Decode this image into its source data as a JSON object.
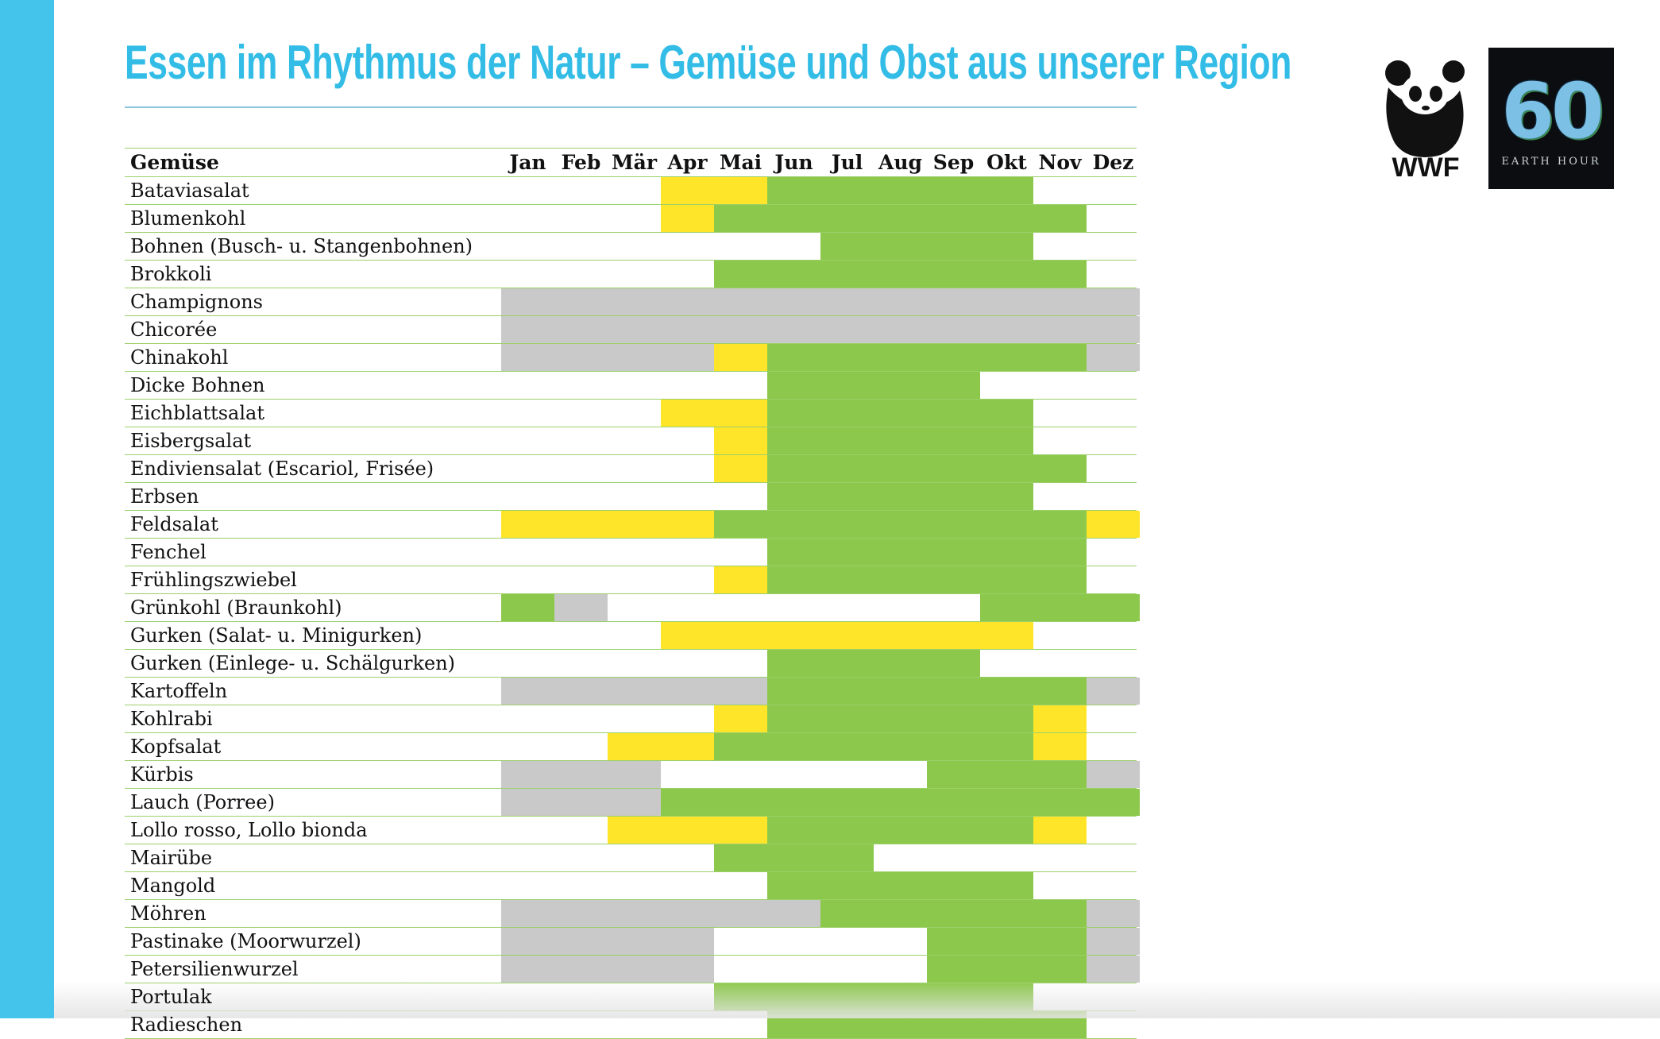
{
  "title": "Essen im Rhythmus der Natur – Gemüse und Obst aus unserer Region",
  "logos": {
    "wwf_text": "WWF",
    "earth_hour_number": "60",
    "earth_hour_caption": "EARTH HOUR"
  },
  "table": {
    "header_label": "Gemüse",
    "months": [
      "Jan",
      "Feb",
      "Mär",
      "Apr",
      "Mai",
      "Jun",
      "Jul",
      "Aug",
      "Sep",
      "Okt",
      "Nov",
      "Dez"
    ],
    "legend_codes": {
      "g": "green",
      "y": "yellow",
      "s": "gray",
      "-": "none"
    },
    "colors": {
      "green": "#8cc84b",
      "yellow": "#ffe52a",
      "gray": "#c9c9c9"
    },
    "rows": [
      {
        "name": "Bataviasalat",
        "months": [
          "-",
          "-",
          "-",
          "y",
          "y",
          "g",
          "g",
          "g",
          "g",
          "g",
          "-",
          "-"
        ]
      },
      {
        "name": "Blumenkohl",
        "months": [
          "-",
          "-",
          "-",
          "y",
          "g",
          "g",
          "g",
          "g",
          "g",
          "g",
          "g",
          "-"
        ]
      },
      {
        "name": "Bohnen (Busch- u. Stangenbohnen)",
        "months": [
          "-",
          "-",
          "-",
          "-",
          "-",
          "-",
          "g",
          "g",
          "g",
          "g",
          "-",
          "-"
        ]
      },
      {
        "name": "Brokkoli",
        "months": [
          "-",
          "-",
          "-",
          "-",
          "g",
          "g",
          "g",
          "g",
          "g",
          "g",
          "g",
          "-"
        ]
      },
      {
        "name": "Champignons",
        "months": [
          "s",
          "s",
          "s",
          "s",
          "s",
          "s",
          "s",
          "s",
          "s",
          "s",
          "s",
          "s"
        ]
      },
      {
        "name": "Chicorée",
        "months": [
          "s",
          "s",
          "s",
          "s",
          "s",
          "s",
          "s",
          "s",
          "s",
          "s",
          "s",
          "s"
        ]
      },
      {
        "name": "Chinakohl",
        "months": [
          "s",
          "s",
          "s",
          "s",
          "y",
          "g",
          "g",
          "g",
          "g",
          "g",
          "g",
          "s"
        ]
      },
      {
        "name": "Dicke Bohnen",
        "months": [
          "-",
          "-",
          "-",
          "-",
          "-",
          "g",
          "g",
          "g",
          "g",
          "-",
          "-",
          "-"
        ]
      },
      {
        "name": "Eichblattsalat",
        "months": [
          "-",
          "-",
          "-",
          "y",
          "y",
          "g",
          "g",
          "g",
          "g",
          "g",
          "-",
          "-"
        ]
      },
      {
        "name": "Eisbergsalat",
        "months": [
          "-",
          "-",
          "-",
          "-",
          "y",
          "g",
          "g",
          "g",
          "g",
          "g",
          "-",
          "-"
        ]
      },
      {
        "name": "Endiviensalat (Escariol, Frisée)",
        "months": [
          "-",
          "-",
          "-",
          "-",
          "y",
          "g",
          "g",
          "g",
          "g",
          "g",
          "g",
          "-"
        ]
      },
      {
        "name": "Erbsen",
        "months": [
          "-",
          "-",
          "-",
          "-",
          "-",
          "g",
          "g",
          "g",
          "g",
          "g",
          "-",
          "-"
        ]
      },
      {
        "name": "Feldsalat",
        "months": [
          "y",
          "y",
          "y",
          "y",
          "g",
          "g",
          "g",
          "g",
          "g",
          "g",
          "g",
          "y"
        ]
      },
      {
        "name": "Fenchel",
        "months": [
          "-",
          "-",
          "-",
          "-",
          "-",
          "g",
          "g",
          "g",
          "g",
          "g",
          "g",
          "-"
        ]
      },
      {
        "name": "Frühlingszwiebel",
        "months": [
          "-",
          "-",
          "-",
          "-",
          "y",
          "g",
          "g",
          "g",
          "g",
          "g",
          "g",
          "-"
        ]
      },
      {
        "name": "Grünkohl (Braunkohl)",
        "months": [
          "g",
          "s",
          "-",
          "-",
          "-",
          "-",
          "-",
          "-",
          "-",
          "g",
          "g",
          "g"
        ]
      },
      {
        "name": "Gurken (Salat- u. Minigurken)",
        "months": [
          "-",
          "-",
          "-",
          "y",
          "y",
          "y",
          "y",
          "y",
          "y",
          "y",
          "-",
          "-"
        ]
      },
      {
        "name": "Gurken (Einlege- u. Schälgurken)",
        "months": [
          "-",
          "-",
          "-",
          "-",
          "-",
          "g",
          "g",
          "g",
          "g",
          "-",
          "-",
          "-"
        ]
      },
      {
        "name": "Kartoffeln",
        "months": [
          "s",
          "s",
          "s",
          "s",
          "s",
          "g",
          "g",
          "g",
          "g",
          "g",
          "g",
          "s"
        ]
      },
      {
        "name": "Kohlrabi",
        "months": [
          "-",
          "-",
          "-",
          "-",
          "y",
          "g",
          "g",
          "g",
          "g",
          "g",
          "y",
          "-"
        ]
      },
      {
        "name": "Kopfsalat",
        "months": [
          "-",
          "-",
          "y",
          "y",
          "g",
          "g",
          "g",
          "g",
          "g",
          "g",
          "y",
          "-"
        ]
      },
      {
        "name": "Kürbis",
        "months": [
          "s",
          "s",
          "s",
          "-",
          "-",
          "-",
          "-",
          "-",
          "g",
          "g",
          "g",
          "s"
        ]
      },
      {
        "name": "Lauch (Porree)",
        "months": [
          "s",
          "s",
          "s",
          "g",
          "g",
          "g",
          "g",
          "g",
          "g",
          "g",
          "g",
          "g"
        ]
      },
      {
        "name": "Lollo rosso, Lollo bionda",
        "months": [
          "-",
          "-",
          "y",
          "y",
          "y",
          "g",
          "g",
          "g",
          "g",
          "g",
          "y",
          "-"
        ]
      },
      {
        "name": "Mairübe",
        "months": [
          "-",
          "-",
          "-",
          "-",
          "g",
          "g",
          "g",
          "-",
          "-",
          "-",
          "-",
          "-"
        ]
      },
      {
        "name": "Mangold",
        "months": [
          "-",
          "-",
          "-",
          "-",
          "-",
          "g",
          "g",
          "g",
          "g",
          "g",
          "-",
          "-"
        ]
      },
      {
        "name": "Möhren",
        "months": [
          "s",
          "s",
          "s",
          "s",
          "s",
          "s",
          "g",
          "g",
          "g",
          "g",
          "g",
          "s"
        ]
      },
      {
        "name": "Pastinake (Moorwurzel)",
        "months": [
          "s",
          "s",
          "s",
          "s",
          "-",
          "-",
          "-",
          "-",
          "g",
          "g",
          "g",
          "s"
        ]
      },
      {
        "name": "Petersilienwurzel",
        "months": [
          "s",
          "s",
          "s",
          "s",
          "-",
          "-",
          "-",
          "-",
          "g",
          "g",
          "g",
          "s"
        ]
      },
      {
        "name": "Portulak",
        "months": [
          "-",
          "-",
          "-",
          "-",
          "g",
          "g",
          "g",
          "g",
          "g",
          "g",
          "-",
          "-"
        ]
      },
      {
        "name": "Radieschen",
        "months": [
          "-",
          "-",
          "-",
          "-",
          "-",
          "g",
          "g",
          "g",
          "g",
          "g",
          "g",
          "-"
        ]
      }
    ]
  }
}
